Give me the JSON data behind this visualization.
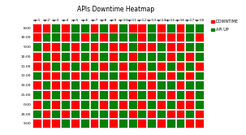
{
  "title": "APIs Downtime Heatmap",
  "x_labels": [
    "api1",
    "api2",
    "api3",
    "api4",
    "api5",
    "api6",
    "api7",
    "api8",
    "api9",
    "api10",
    "api11",
    "api12",
    "api13",
    "api14",
    "api15",
    "api16",
    "api17",
    "api18"
  ],
  "y_labels": [
    "8:00",
    "10:00",
    "9:00",
    "10:00",
    "11:00",
    "11:00",
    "13:00",
    "21:00",
    "0:00",
    "19:00",
    "9:00"
  ],
  "legend_labels": [
    "DOWNTIME",
    "API UP"
  ],
  "legend_colors": [
    "#ff0000",
    "#008000"
  ],
  "color_down": "#ff0000",
  "color_up": "#008000",
  "bg_color": "#ffffff",
  "grid_color": "#ffffff",
  "title_fontsize": 5.5,
  "tick_fontsize": 3.2,
  "legend_fontsize": 3.5,
  "grid": [
    [
      1,
      1,
      0,
      1,
      0,
      0,
      1,
      0,
      1,
      0,
      1,
      1,
      0,
      1,
      0,
      1,
      0,
      0
    ],
    [
      1,
      0,
      0,
      1,
      0,
      1,
      0,
      1,
      0,
      0,
      0,
      1,
      0,
      1,
      1,
      1,
      0,
      1
    ],
    [
      0,
      1,
      1,
      0,
      1,
      0,
      1,
      0,
      1,
      1,
      0,
      1,
      1,
      0,
      1,
      1,
      0,
      0
    ],
    [
      1,
      0,
      1,
      0,
      1,
      0,
      1,
      0,
      1,
      0,
      1,
      0,
      0,
      0,
      1,
      0,
      1,
      0
    ],
    [
      1,
      1,
      0,
      1,
      0,
      1,
      0,
      1,
      0,
      1,
      0,
      1,
      0,
      1,
      0,
      1,
      0,
      1
    ],
    [
      0,
      1,
      1,
      0,
      1,
      0,
      1,
      0,
      0,
      1,
      0,
      1,
      1,
      0,
      1,
      0,
      1,
      0
    ],
    [
      1,
      0,
      1,
      1,
      0,
      1,
      0,
      1,
      1,
      0,
      1,
      0,
      1,
      0,
      0,
      1,
      0,
      0
    ],
    [
      0,
      1,
      0,
      1,
      0,
      0,
      1,
      0,
      1,
      0,
      1,
      0,
      1,
      0,
      1,
      0,
      1,
      0
    ],
    [
      1,
      0,
      1,
      0,
      1,
      0,
      0,
      1,
      0,
      1,
      0,
      1,
      0,
      1,
      0,
      1,
      1,
      0
    ],
    [
      0,
      1,
      0,
      1,
      0,
      1,
      0,
      0,
      1,
      0,
      1,
      0,
      1,
      0,
      1,
      1,
      0,
      1
    ],
    [
      1,
      1,
      1,
      0,
      1,
      0,
      1,
      0,
      1,
      0,
      0,
      1,
      0,
      1,
      0,
      0,
      1,
      1
    ]
  ]
}
